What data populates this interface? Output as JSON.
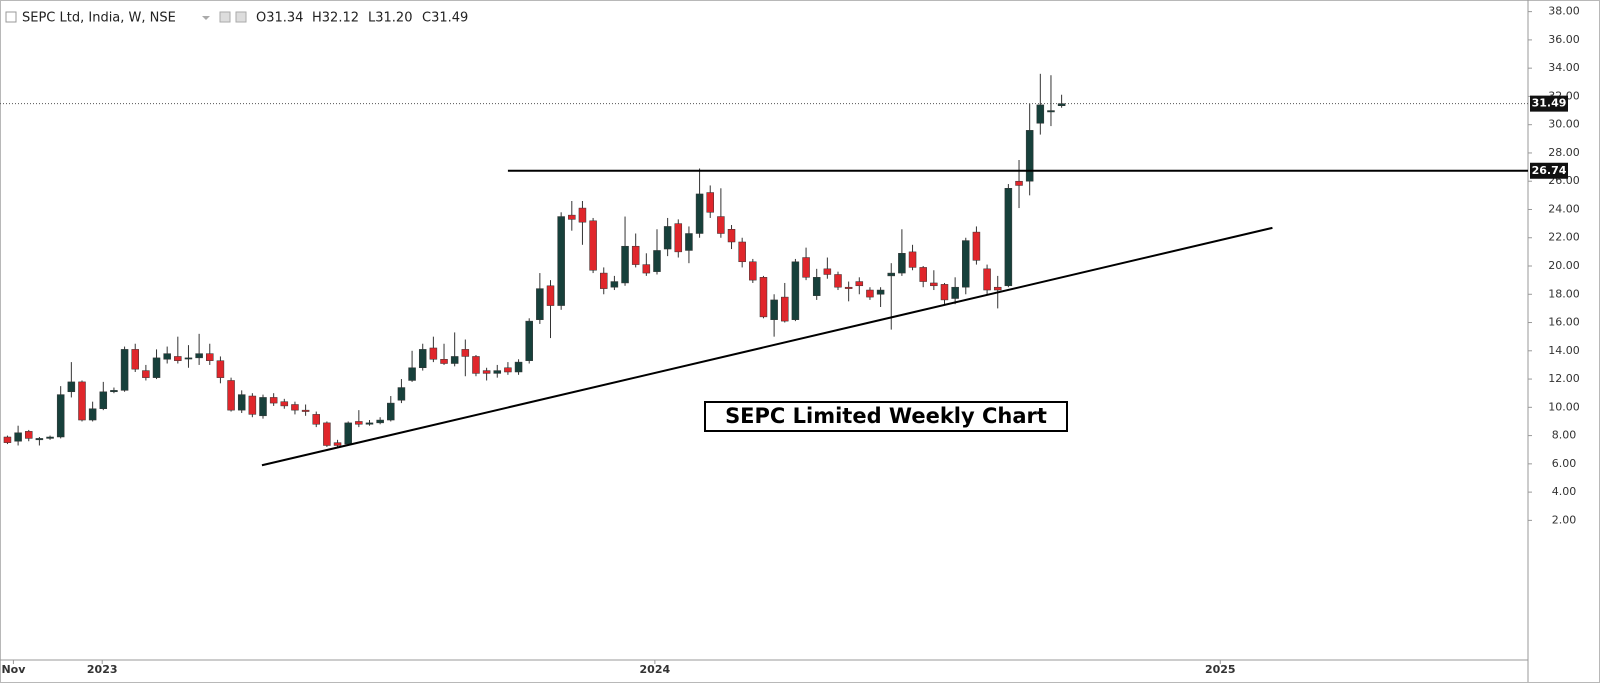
{
  "chart_data": {
    "type": "candlestick",
    "title": "SEPC Ltd, India, W, NSE",
    "legend_values": [
      "O31.34",
      "H32.12",
      "L31.20",
      "C31.49"
    ],
    "annotation": "SEPC Limited Weekly Chart",
    "up_color": "#17403b",
    "down_color": "#e0262b",
    "open": [
      7.9,
      7.6,
      8.3,
      7.7,
      7.8,
      7.9,
      11.1,
      11.8,
      9.1,
      9.9,
      11.1,
      11.2,
      14.1,
      12.6,
      12.1,
      13.4,
      13.6,
      13.5,
      13.5,
      13.8,
      13.3,
      11.9,
      9.8,
      10.8,
      9.4,
      10.7,
      10.4,
      10.2,
      9.8,
      9.5,
      8.9,
      7.5,
      7.4,
      9.0,
      8.8,
      8.9,
      9.1,
      10.5,
      11.9,
      12.8,
      14.2,
      13.4,
      13.1,
      14.1,
      13.6,
      12.6,
      12.4,
      12.8,
      12.5,
      13.3,
      16.2,
      18.6,
      17.2,
      23.6,
      24.1,
      23.2,
      19.5,
      18.5,
      18.8,
      21.4,
      20.1,
      19.6,
      21.2,
      23.0,
      21.1,
      22.3,
      25.2,
      23.5,
      22.6,
      21.7,
      20.3,
      19.2,
      16.2,
      17.8,
      16.2,
      20.6,
      17.9,
      19.8,
      19.4,
      18.5,
      18.9,
      18.3,
      18.0,
      19.3,
      19.5,
      21.0,
      19.9,
      18.8,
      18.7,
      17.7,
      18.5,
      22.4,
      19.8,
      18.5,
      18.6,
      26.0,
      26.0,
      30.1,
      30.9,
      31.34
    ],
    "high": [
      8.0,
      8.7,
      8.4,
      7.9,
      8.0,
      11.5,
      13.2,
      11.9,
      10.4,
      11.8,
      11.4,
      14.3,
      14.5,
      13.0,
      14.1,
      14.3,
      15.0,
      14.4,
      15.2,
      14.5,
      13.6,
      12.1,
      11.2,
      11.0,
      10.9,
      11.0,
      10.6,
      10.4,
      10.2,
      9.7,
      9.0,
      7.7,
      9.0,
      9.8,
      9.1,
      9.3,
      10.8,
      12.0,
      14.0,
      14.5,
      15.0,
      14.5,
      15.3,
      14.8,
      13.7,
      12.8,
      13.0,
      13.2,
      13.4,
      16.3,
      19.5,
      19.0,
      23.8,
      24.6,
      24.6,
      23.4,
      19.9,
      19.3,
      23.5,
      22.3,
      20.9,
      22.6,
      23.4,
      23.3,
      22.8,
      26.9,
      25.7,
      25.5,
      22.9,
      22.0,
      20.5,
      19.3,
      18.0,
      18.8,
      20.5,
      21.3,
      19.8,
      20.6,
      19.6,
      18.9,
      19.2,
      18.5,
      18.5,
      20.2,
      22.6,
      21.5,
      20.0,
      19.7,
      18.8,
      19.2,
      22.0,
      22.8,
      20.1,
      19.3,
      25.8,
      27.5,
      31.5,
      33.6,
      33.5,
      32.12
    ],
    "low": [
      7.4,
      7.3,
      7.6,
      7.3,
      7.7,
      7.8,
      10.7,
      9.0,
      9.0,
      9.8,
      11.0,
      11.1,
      12.5,
      11.9,
      12.0,
      13.1,
      13.1,
      12.8,
      13.0,
      13.0,
      11.7,
      9.7,
      9.6,
      9.3,
      9.2,
      10.1,
      9.9,
      9.5,
      9.4,
      8.6,
      7.2,
      7.1,
      7.3,
      8.6,
      8.7,
      8.8,
      9.0,
      10.3,
      11.8,
      12.6,
      13.2,
      13.0,
      12.9,
      12.2,
      12.2,
      11.9,
      12.1,
      12.3,
      12.3,
      13.1,
      15.9,
      14.9,
      16.9,
      22.5,
      21.5,
      19.5,
      18.0,
      18.3,
      18.6,
      19.9,
      19.3,
      19.4,
      20.7,
      20.6,
      20.2,
      22.0,
      23.4,
      22.0,
      21.2,
      19.9,
      18.8,
      16.3,
      15.0,
      16.0,
      16.1,
      19.0,
      17.6,
      19.1,
      18.3,
      17.5,
      18.0,
      17.6,
      17.1,
      15.5,
      19.3,
      19.7,
      18.5,
      18.3,
      17.3,
      17.3,
      18.0,
      20.1,
      18.0,
      17.0,
      18.5,
      24.1,
      25.0,
      29.3,
      29.9,
      31.2
    ],
    "close": [
      7.5,
      8.2,
      7.8,
      7.8,
      7.9,
      10.9,
      11.8,
      9.1,
      9.9,
      11.1,
      11.2,
      14.1,
      12.7,
      12.1,
      13.5,
      13.8,
      13.3,
      13.5,
      13.8,
      13.3,
      12.1,
      9.8,
      10.9,
      9.5,
      10.7,
      10.3,
      10.1,
      9.8,
      9.7,
      8.8,
      7.3,
      7.3,
      8.9,
      8.8,
      8.9,
      9.1,
      10.3,
      11.4,
      12.8,
      14.1,
      13.4,
      13.1,
      13.6,
      13.6,
      12.4,
      12.4,
      12.6,
      12.5,
      13.2,
      16.1,
      18.4,
      17.2,
      23.5,
      23.3,
      23.1,
      19.7,
      18.4,
      18.9,
      21.4,
      20.1,
      19.5,
      21.1,
      22.8,
      21.0,
      22.3,
      25.1,
      23.8,
      22.3,
      21.7,
      20.3,
      19.0,
      16.4,
      17.6,
      16.1,
      20.3,
      19.2,
      19.2,
      19.4,
      18.5,
      18.4,
      18.6,
      17.8,
      18.3,
      19.5,
      20.9,
      19.9,
      18.9,
      18.6,
      17.6,
      18.5,
      21.8,
      20.4,
      18.3,
      18.3,
      25.5,
      25.7,
      29.6,
      31.4,
      31.0,
      31.49
    ],
    "resistance": {
      "start": 47,
      "value": 26.74,
      "label": "26.74"
    },
    "price_line": {
      "value": 31.49,
      "label": "31.49"
    },
    "trendline": {
      "x": [
        23.9,
        118.8
      ],
      "y": [
        5.9,
        22.7
      ]
    },
    "xlim": [
      -0.7,
      142.8
    ],
    "xticks": [
      {
        "value": 0.56,
        "label": "Nov"
      },
      {
        "value": 8.9,
        "label": "2023"
      },
      {
        "value": 60.8,
        "label": "2024"
      },
      {
        "value": 113.9,
        "label": "2025"
      }
    ],
    "ylim": [
      -7.88,
      38.54
    ],
    "yticks": [
      {
        "value": 2,
        "label": "2.00"
      },
      {
        "value": 4,
        "label": "4.00"
      },
      {
        "value": 6,
        "label": "6.00"
      },
      {
        "value": 8,
        "label": "8.00"
      },
      {
        "value": 10,
        "label": "10.00"
      },
      {
        "value": 12,
        "label": "12.00"
      },
      {
        "value": 14,
        "label": "14.00"
      },
      {
        "value": 16,
        "label": "16.00"
      },
      {
        "value": 18,
        "label": "18.00"
      },
      {
        "value": 20,
        "label": "20.00"
      },
      {
        "value": 22,
        "label": "22.00"
      },
      {
        "value": 24,
        "label": "24.00"
      },
      {
        "value": 26,
        "label": "26.00"
      },
      {
        "value": 28,
        "label": "28.00"
      },
      {
        "value": 30,
        "label": "30.00"
      },
      {
        "value": 32,
        "label": "32.00"
      },
      {
        "value": 34,
        "label": "34.00"
      },
      {
        "value": 36,
        "label": "36.00"
      },
      {
        "value": 38,
        "label": "38.00"
      }
    ]
  }
}
